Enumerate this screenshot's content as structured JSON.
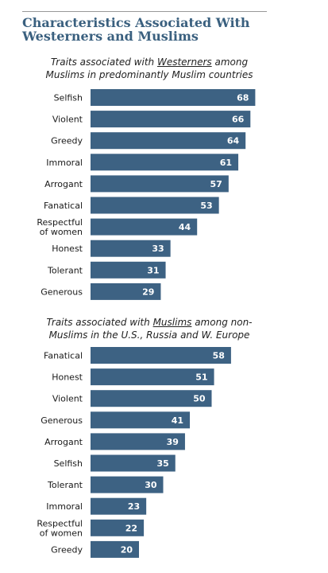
{
  "title_line1": "Characteristics Associated With",
  "title_line2": "Westerners and Muslims",
  "bar_color": "#3d6283",
  "chart_data": [
    {
      "type": "bar",
      "orientation": "horizontal",
      "title_pre": "Traits associated  with ",
      "title_em": "Westerners",
      "title_post": " among",
      "title_line2": "Muslims in predominantly Muslim countries",
      "categories": [
        [
          "Selfish"
        ],
        [
          "Violent"
        ],
        [
          "Greedy"
        ],
        [
          "Immoral"
        ],
        [
          "Arrogant"
        ],
        [
          "Fanatical"
        ],
        [
          "Respectful",
          "of women"
        ],
        [
          "Honest"
        ],
        [
          "Tolerant"
        ],
        [
          "Generous"
        ]
      ],
      "values": [
        68,
        66,
        64,
        61,
        57,
        53,
        44,
        33,
        31,
        29
      ]
    },
    {
      "type": "bar",
      "orientation": "horizontal",
      "title_pre": "Traits associated  with ",
      "title_em": "Muslims",
      "title_post": " among non-",
      "title_line2": "Muslims in the U.S., Russia and W. Europe",
      "categories": [
        [
          "Fanatical"
        ],
        [
          "Honest"
        ],
        [
          "Violent"
        ],
        [
          "Generous"
        ],
        [
          "Arrogant"
        ],
        [
          "Selfish"
        ],
        [
          "Tolerant"
        ],
        [
          "Immoral"
        ],
        [
          "Respectful",
          "of women"
        ],
        [
          "Greedy"
        ]
      ],
      "values": [
        58,
        51,
        50,
        41,
        39,
        35,
        30,
        23,
        22,
        20
      ]
    }
  ]
}
